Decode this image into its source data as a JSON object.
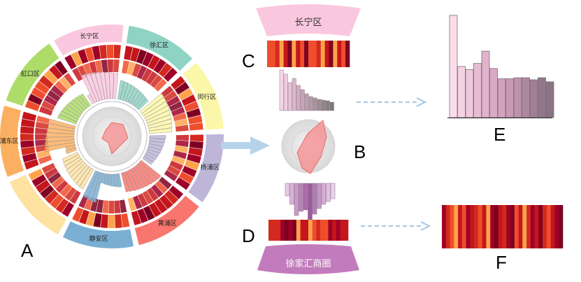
{
  "panels": {
    "A": "A",
    "B": "B",
    "C": "C",
    "D": "D",
    "E": "E",
    "F": "F"
  },
  "districts": [
    {
      "name": "长宁区",
      "color": "#fac8de"
    },
    {
      "name": "徐汇区",
      "color": "#8fd3c4"
    },
    {
      "name": "闵行区",
      "color": "#fbf7a8"
    },
    {
      "name": "杨浦区",
      "color": "#bdb6d9"
    },
    {
      "name": "黄浦区",
      "color": "#f8766e"
    },
    {
      "name": "静安区",
      "color": "#7aaed3"
    },
    {
      "name": "",
      "color": "#fde2a2"
    },
    {
      "name": "浦东区",
      "color": "#fbb061"
    },
    {
      "name": "虹口区",
      "color": "#aedc68"
    }
  ],
  "top_segment": {
    "label": "长宁区",
    "color": "#fac8de"
  },
  "bottom_segment": {
    "label": "徐家汇商圈",
    "color": "#c27bbc"
  },
  "chart_data": {
    "type": "bar",
    "bars": [
      1.0,
      0.5,
      0.47,
      0.53,
      0.65,
      0.48,
      0.38,
      0.38,
      0.39,
      0.39,
      0.37,
      0.39,
      0.35
    ]
  },
  "heat_strip": [
    "#9e0127",
    "#d22a1e",
    "#ee4e2c",
    "#ffa34a",
    "#c4161c",
    "#ee4e2c",
    "#9e0127",
    "#c4161c",
    "#d22a1e",
    "#ee4e2c",
    "#c4161c",
    "#ffa34a",
    "#9e0127",
    "#7d0020",
    "#c4161c",
    "#d22a1e",
    "#9e0127",
    "#7d0020",
    "#ee4e2c",
    "#c4161c",
    "#ffa34a",
    "#d22a1e",
    "#9e0127",
    "#c4161c",
    "#7d0020",
    "#d22a1e",
    "#ee4e2c",
    "#c4161c",
    "#9e0127",
    "#7d0020"
  ]
}
